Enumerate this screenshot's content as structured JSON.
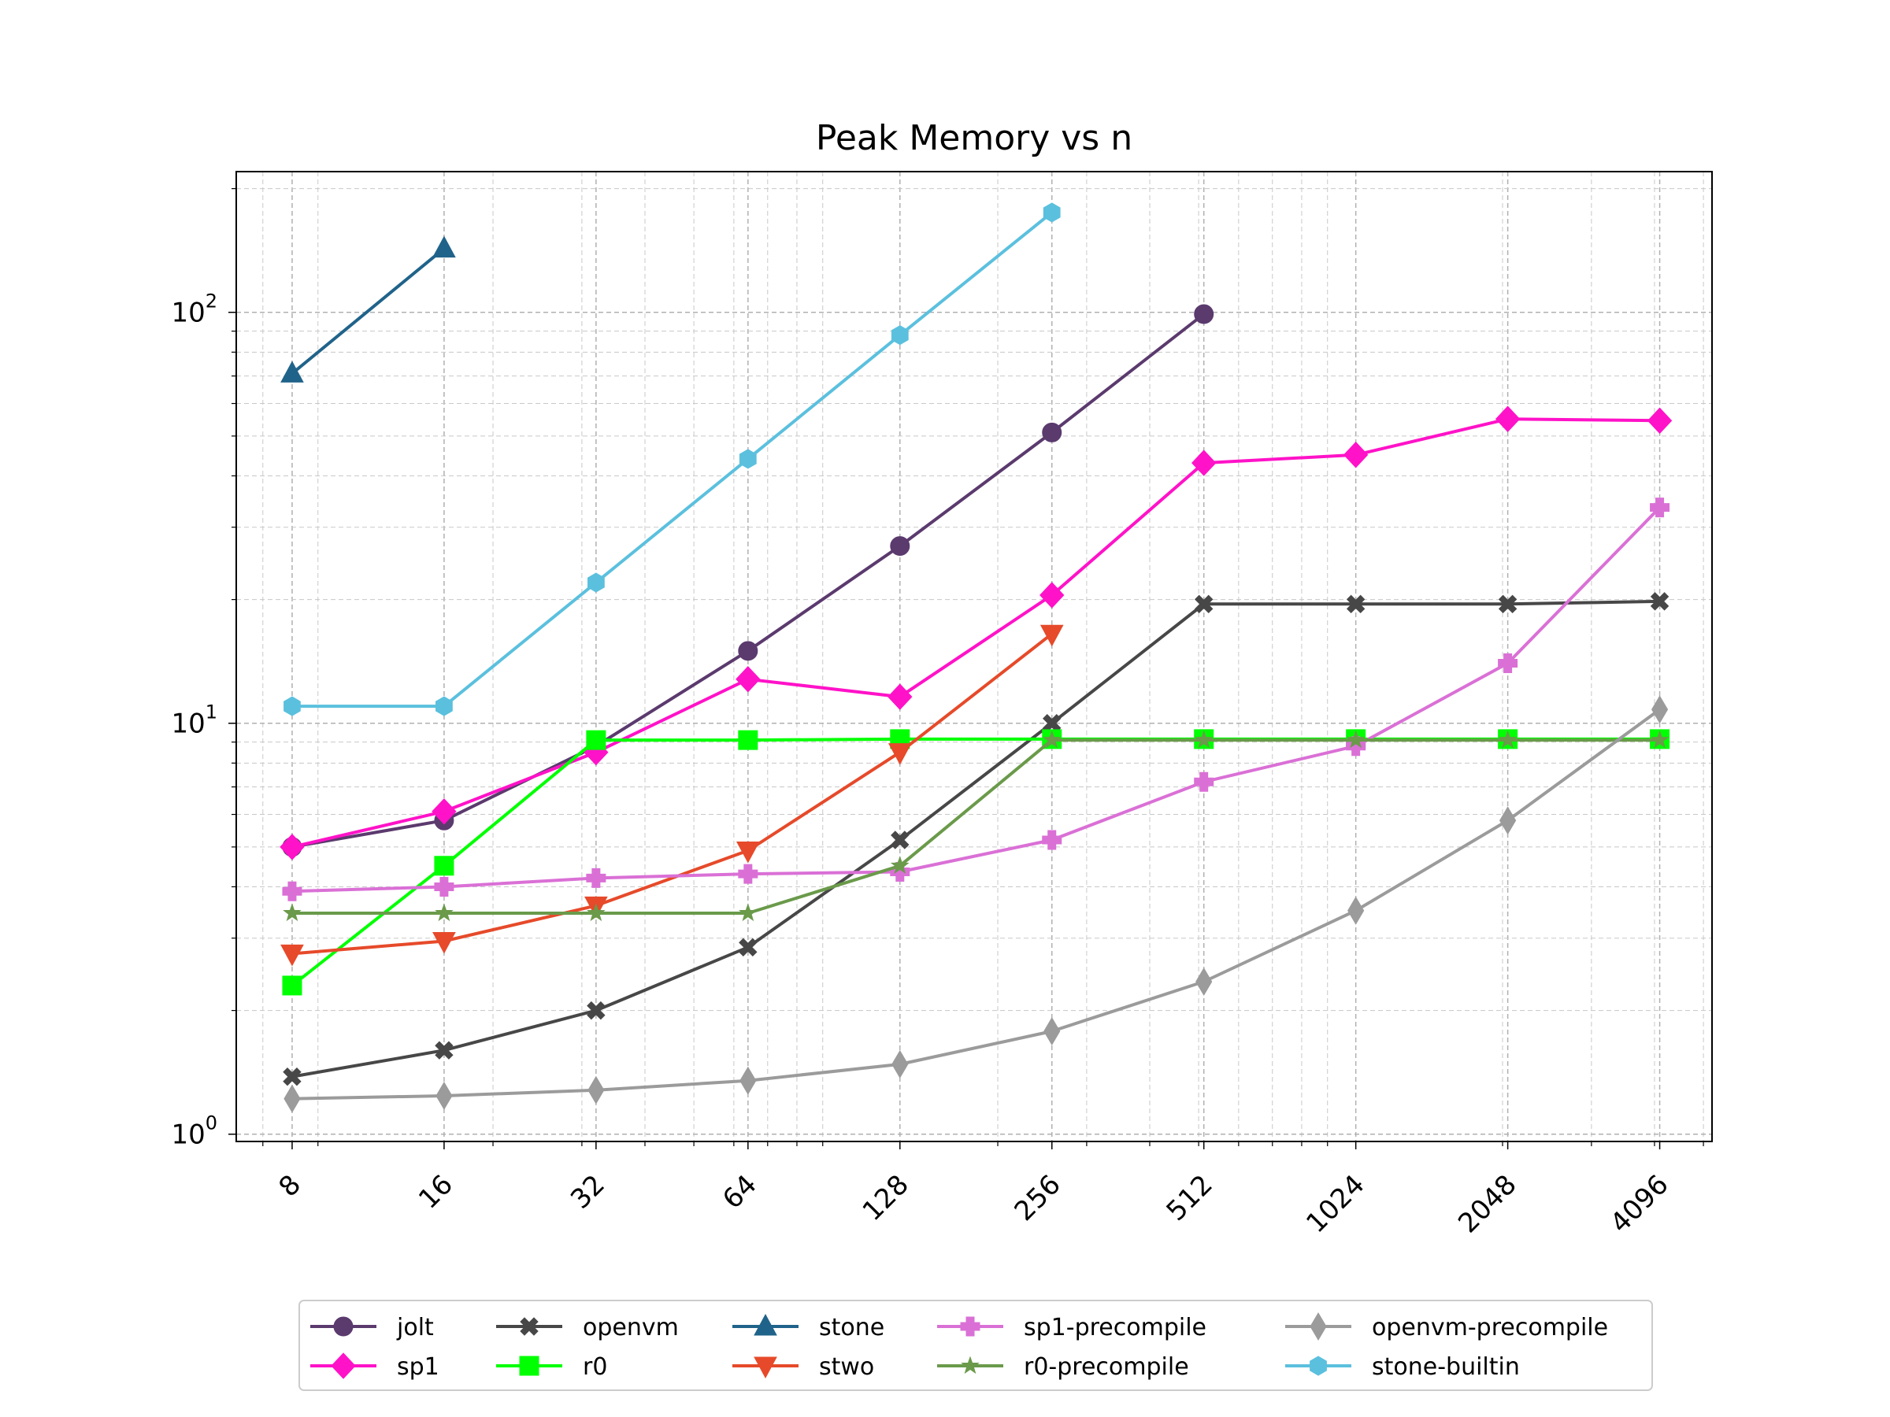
{
  "chart_data": {
    "type": "line",
    "title": "Peak Memory vs n",
    "xlabel": "",
    "ylabel": "",
    "x_scale": "log2",
    "y_scale": "log",
    "x": [
      8,
      16,
      32,
      64,
      128,
      256,
      512,
      1024,
      2048,
      4096
    ],
    "x_tick_labels": [
      "8",
      "16",
      "32",
      "64",
      "128",
      "256",
      "512",
      "1024",
      "2048",
      "4096"
    ],
    "y_tick_labels": [
      {
        "base": "10",
        "exp": "0",
        "value": 1
      },
      {
        "base": "10",
        "exp": "1",
        "value": 10
      },
      {
        "base": "10",
        "exp": "2",
        "value": 100
      }
    ],
    "xlim": [
      6.2,
      5200
    ],
    "ylim": [
      0.96,
      220
    ],
    "grid": true,
    "legend_position": "bottom-center",
    "series": [
      {
        "name": "jolt",
        "color": "#5b3a6e",
        "marker": "circle",
        "values": [
          5.0,
          5.8,
          8.8,
          15.0,
          27.0,
          51.0,
          99.0,
          null,
          null,
          null
        ]
      },
      {
        "name": "sp1",
        "color": "#ff12c8",
        "marker": "diamond",
        "values": [
          5.0,
          6.1,
          8.5,
          12.8,
          11.6,
          20.5,
          43.0,
          45.0,
          55.0,
          54.5
        ]
      },
      {
        "name": "openvm",
        "color": "#474747",
        "marker": "x",
        "values": [
          1.38,
          1.6,
          2.0,
          2.85,
          5.2,
          10.0,
          19.5,
          19.5,
          19.5,
          19.8
        ]
      },
      {
        "name": "r0",
        "color": "#00ff00",
        "marker": "square",
        "values": [
          2.3,
          4.5,
          9.1,
          9.1,
          9.15,
          9.15,
          9.15,
          9.15,
          9.15,
          9.15
        ]
      },
      {
        "name": "stone",
        "color": "#20638a",
        "marker": "triangle-up",
        "values": [
          71.0,
          143.0,
          null,
          null,
          null,
          null,
          null,
          null,
          null,
          null
        ]
      },
      {
        "name": "stwo",
        "color": "#e64a2a",
        "marker": "triangle-down",
        "values": [
          2.75,
          2.95,
          3.6,
          4.9,
          8.5,
          16.5,
          null,
          null,
          null,
          null
        ]
      },
      {
        "name": "sp1-precompile",
        "color": "#da70d6",
        "marker": "plus",
        "values": [
          3.9,
          4.0,
          4.2,
          4.3,
          4.35,
          5.2,
          7.2,
          8.8,
          14.0,
          33.5
        ]
      },
      {
        "name": "r0-precompile",
        "color": "#6a9a4a",
        "marker": "star",
        "values": [
          3.45,
          3.45,
          3.45,
          3.45,
          4.5,
          9.1,
          9.1,
          9.1,
          9.1,
          9.1
        ]
      },
      {
        "name": "openvm-precompile",
        "color": "#9b9b9b",
        "marker": "thin-diamond",
        "values": [
          1.22,
          1.24,
          1.28,
          1.35,
          1.48,
          1.78,
          2.35,
          3.5,
          5.8,
          10.8
        ]
      },
      {
        "name": "stone-builtin",
        "color": "#5bc0de",
        "marker": "hexagon",
        "values": [
          11.0,
          11.0,
          22.0,
          44.0,
          88.0,
          175.0,
          null,
          null,
          null,
          null
        ]
      }
    ]
  }
}
